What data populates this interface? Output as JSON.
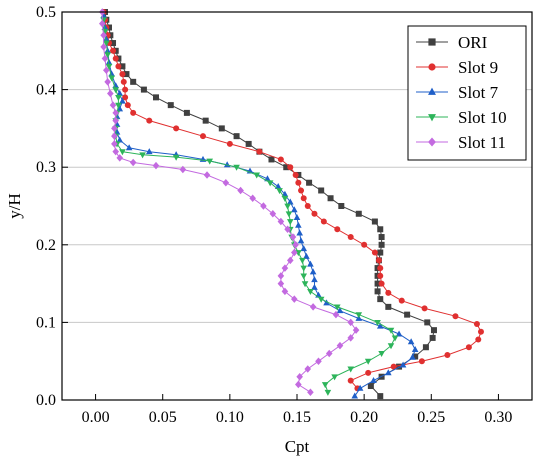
{
  "chart_data": {
    "type": "line",
    "title": "",
    "xlabel": "Cpt",
    "ylabel": "y/H",
    "xlim": [
      -0.025,
      0.325
    ],
    "ylim": [
      0,
      0.5
    ],
    "xticks": [
      "0.00",
      "0.05",
      "0.10",
      "0.15",
      "0.20",
      "0.25",
      "0.30"
    ],
    "yticks": [
      "0.0",
      "0.1",
      "0.2",
      "0.3",
      "0.4",
      "0.5"
    ],
    "grid": "horizontal",
    "legend_position": "top-right",
    "series": [
      {
        "name": "ORI",
        "color": "#404040",
        "marker": "square",
        "points": [
          [
            0.212,
            0.005
          ],
          [
            0.205,
            0.018
          ],
          [
            0.213,
            0.03
          ],
          [
            0.226,
            0.043
          ],
          [
            0.238,
            0.056
          ],
          [
            0.246,
            0.068
          ],
          [
            0.251,
            0.08
          ],
          [
            0.252,
            0.09
          ],
          [
            0.247,
            0.1
          ],
          [
            0.232,
            0.11
          ],
          [
            0.218,
            0.12
          ],
          [
            0.212,
            0.13
          ],
          [
            0.21,
            0.14
          ],
          [
            0.21,
            0.15
          ],
          [
            0.21,
            0.16
          ],
          [
            0.21,
            0.17
          ],
          [
            0.211,
            0.18
          ],
          [
            0.212,
            0.19
          ],
          [
            0.213,
            0.2
          ],
          [
            0.213,
            0.21
          ],
          [
            0.212,
            0.22
          ],
          [
            0.208,
            0.23
          ],
          [
            0.196,
            0.24
          ],
          [
            0.183,
            0.25
          ],
          [
            0.175,
            0.26
          ],
          [
            0.168,
            0.27
          ],
          [
            0.159,
            0.28
          ],
          [
            0.151,
            0.29
          ],
          [
            0.142,
            0.3
          ],
          [
            0.131,
            0.31
          ],
          [
            0.122,
            0.32
          ],
          [
            0.114,
            0.33
          ],
          [
            0.105,
            0.34
          ],
          [
            0.094,
            0.35
          ],
          [
            0.082,
            0.36
          ],
          [
            0.068,
            0.37
          ],
          [
            0.056,
            0.38
          ],
          [
            0.045,
            0.39
          ],
          [
            0.036,
            0.4
          ],
          [
            0.028,
            0.41
          ],
          [
            0.023,
            0.42
          ],
          [
            0.02,
            0.43
          ],
          [
            0.017,
            0.44
          ],
          [
            0.015,
            0.45
          ],
          [
            0.013,
            0.46
          ],
          [
            0.011,
            0.47
          ],
          [
            0.01,
            0.48
          ],
          [
            0.008,
            0.49
          ],
          [
            0.007,
            0.5
          ]
        ]
      },
      {
        "name": "Slot 9",
        "color": "#e03030",
        "marker": "circle",
        "points": [
          [
            0.195,
            0.015
          ],
          [
            0.19,
            0.025
          ],
          [
            0.203,
            0.035
          ],
          [
            0.222,
            0.043
          ],
          [
            0.243,
            0.05
          ],
          [
            0.262,
            0.058
          ],
          [
            0.278,
            0.068
          ],
          [
            0.285,
            0.078
          ],
          [
            0.287,
            0.088
          ],
          [
            0.284,
            0.098
          ],
          [
            0.268,
            0.108
          ],
          [
            0.245,
            0.118
          ],
          [
            0.228,
            0.128
          ],
          [
            0.218,
            0.138
          ],
          [
            0.213,
            0.15
          ],
          [
            0.212,
            0.16
          ],
          [
            0.212,
            0.17
          ],
          [
            0.211,
            0.18
          ],
          [
            0.208,
            0.19
          ],
          [
            0.2,
            0.2
          ],
          [
            0.19,
            0.21
          ],
          [
            0.18,
            0.22
          ],
          [
            0.17,
            0.23
          ],
          [
            0.163,
            0.24
          ],
          [
            0.158,
            0.25
          ],
          [
            0.155,
            0.26
          ],
          [
            0.153,
            0.27
          ],
          [
            0.151,
            0.28
          ],
          [
            0.149,
            0.29
          ],
          [
            0.145,
            0.3
          ],
          [
            0.138,
            0.31
          ],
          [
            0.122,
            0.32
          ],
          [
            0.1,
            0.33
          ],
          [
            0.08,
            0.34
          ],
          [
            0.06,
            0.35
          ],
          [
            0.04,
            0.36
          ],
          [
            0.028,
            0.37
          ],
          [
            0.024,
            0.38
          ],
          [
            0.022,
            0.39
          ],
          [
            0.022,
            0.4
          ],
          [
            0.021,
            0.41
          ],
          [
            0.02,
            0.42
          ],
          [
            0.017,
            0.43
          ],
          [
            0.015,
            0.44
          ],
          [
            0.013,
            0.45
          ],
          [
            0.01,
            0.46
          ],
          [
            0.009,
            0.47
          ],
          [
            0.008,
            0.48
          ],
          [
            0.007,
            0.49
          ],
          [
            0.006,
            0.5
          ]
        ]
      },
      {
        "name": "Slot 7",
        "color": "#1f5fc8",
        "marker": "triangle-up",
        "points": [
          [
            0.193,
            0.005
          ],
          [
            0.197,
            0.015
          ],
          [
            0.207,
            0.025
          ],
          [
            0.218,
            0.035
          ],
          [
            0.229,
            0.045
          ],
          [
            0.236,
            0.055
          ],
          [
            0.238,
            0.065
          ],
          [
            0.235,
            0.075
          ],
          [
            0.226,
            0.085
          ],
          [
            0.212,
            0.095
          ],
          [
            0.196,
            0.105
          ],
          [
            0.182,
            0.115
          ],
          [
            0.172,
            0.125
          ],
          [
            0.166,
            0.135
          ],
          [
            0.163,
            0.145
          ],
          [
            0.163,
            0.155
          ],
          [
            0.162,
            0.165
          ],
          [
            0.16,
            0.175
          ],
          [
            0.157,
            0.185
          ],
          [
            0.155,
            0.195
          ],
          [
            0.153,
            0.205
          ],
          [
            0.152,
            0.215
          ],
          [
            0.151,
            0.225
          ],
          [
            0.15,
            0.235
          ],
          [
            0.148,
            0.245
          ],
          [
            0.145,
            0.255
          ],
          [
            0.141,
            0.265
          ],
          [
            0.136,
            0.275
          ],
          [
            0.128,
            0.285
          ],
          [
            0.115,
            0.295
          ],
          [
            0.098,
            0.303
          ],
          [
            0.08,
            0.31
          ],
          [
            0.06,
            0.316
          ],
          [
            0.04,
            0.32
          ],
          [
            0.025,
            0.325
          ],
          [
            0.018,
            0.335
          ],
          [
            0.016,
            0.345
          ],
          [
            0.016,
            0.355
          ],
          [
            0.016,
            0.365
          ],
          [
            0.018,
            0.375
          ],
          [
            0.02,
            0.385
          ],
          [
            0.018,
            0.395
          ],
          [
            0.015,
            0.405
          ],
          [
            0.012,
            0.42
          ],
          [
            0.01,
            0.435
          ],
          [
            0.009,
            0.45
          ],
          [
            0.008,
            0.465
          ],
          [
            0.007,
            0.48
          ],
          [
            0.006,
            0.495
          ]
        ]
      },
      {
        "name": "Slot 10",
        "color": "#2db45a",
        "marker": "triangle-down",
        "points": [
          [
            0.173,
            0.01
          ],
          [
            0.171,
            0.02
          ],
          [
            0.178,
            0.03
          ],
          [
            0.19,
            0.04
          ],
          [
            0.203,
            0.05
          ],
          [
            0.213,
            0.06
          ],
          [
            0.22,
            0.07
          ],
          [
            0.223,
            0.08
          ],
          [
            0.22,
            0.09
          ],
          [
            0.21,
            0.1
          ],
          [
            0.196,
            0.11
          ],
          [
            0.18,
            0.12
          ],
          [
            0.168,
            0.13
          ],
          [
            0.16,
            0.14
          ],
          [
            0.156,
            0.15
          ],
          [
            0.155,
            0.16
          ],
          [
            0.155,
            0.17
          ],
          [
            0.154,
            0.18
          ],
          [
            0.151,
            0.19
          ],
          [
            0.148,
            0.2
          ],
          [
            0.146,
            0.21
          ],
          [
            0.145,
            0.22
          ],
          [
            0.145,
            0.23
          ],
          [
            0.144,
            0.24
          ],
          [
            0.143,
            0.25
          ],
          [
            0.141,
            0.26
          ],
          [
            0.137,
            0.27
          ],
          [
            0.13,
            0.28
          ],
          [
            0.12,
            0.29
          ],
          [
            0.105,
            0.3
          ],
          [
            0.085,
            0.308
          ],
          [
            0.06,
            0.313
          ],
          [
            0.035,
            0.316
          ],
          [
            0.02,
            0.32
          ],
          [
            0.016,
            0.33
          ],
          [
            0.015,
            0.34
          ],
          [
            0.015,
            0.35
          ],
          [
            0.015,
            0.36
          ],
          [
            0.016,
            0.37
          ],
          [
            0.017,
            0.38
          ],
          [
            0.017,
            0.39
          ],
          [
            0.015,
            0.4
          ],
          [
            0.012,
            0.415
          ],
          [
            0.01,
            0.43
          ],
          [
            0.009,
            0.445
          ],
          [
            0.008,
            0.46
          ],
          [
            0.007,
            0.475
          ],
          [
            0.006,
            0.49
          ]
        ]
      },
      {
        "name": "Slot 11",
        "color": "#c36ae0",
        "marker": "diamond",
        "points": [
          [
            0.16,
            0.01
          ],
          [
            0.151,
            0.02
          ],
          [
            0.152,
            0.03
          ],
          [
            0.158,
            0.04
          ],
          [
            0.166,
            0.05
          ],
          [
            0.174,
            0.06
          ],
          [
            0.182,
            0.07
          ],
          [
            0.19,
            0.08
          ],
          [
            0.194,
            0.09
          ],
          [
            0.19,
            0.1
          ],
          [
            0.179,
            0.11
          ],
          [
            0.162,
            0.12
          ],
          [
            0.148,
            0.13
          ],
          [
            0.141,
            0.14
          ],
          [
            0.138,
            0.15
          ],
          [
            0.138,
            0.16
          ],
          [
            0.141,
            0.17
          ],
          [
            0.145,
            0.18
          ],
          [
            0.148,
            0.19
          ],
          [
            0.149,
            0.2
          ],
          [
            0.147,
            0.21
          ],
          [
            0.143,
            0.22
          ],
          [
            0.138,
            0.23
          ],
          [
            0.132,
            0.24
          ],
          [
            0.125,
            0.25
          ],
          [
            0.117,
            0.26
          ],
          [
            0.108,
            0.27
          ],
          [
            0.097,
            0.28
          ],
          [
            0.083,
            0.29
          ],
          [
            0.065,
            0.297
          ],
          [
            0.045,
            0.302
          ],
          [
            0.028,
            0.306
          ],
          [
            0.018,
            0.312
          ],
          [
            0.015,
            0.32
          ],
          [
            0.014,
            0.33
          ],
          [
            0.014,
            0.34
          ],
          [
            0.014,
            0.35
          ],
          [
            0.015,
            0.36
          ],
          [
            0.015,
            0.37
          ],
          [
            0.013,
            0.38
          ],
          [
            0.011,
            0.395
          ],
          [
            0.009,
            0.41
          ],
          [
            0.008,
            0.425
          ],
          [
            0.007,
            0.44
          ],
          [
            0.006,
            0.455
          ],
          [
            0.006,
            0.47
          ],
          [
            0.005,
            0.485
          ],
          [
            0.005,
            0.5
          ]
        ]
      }
    ]
  }
}
